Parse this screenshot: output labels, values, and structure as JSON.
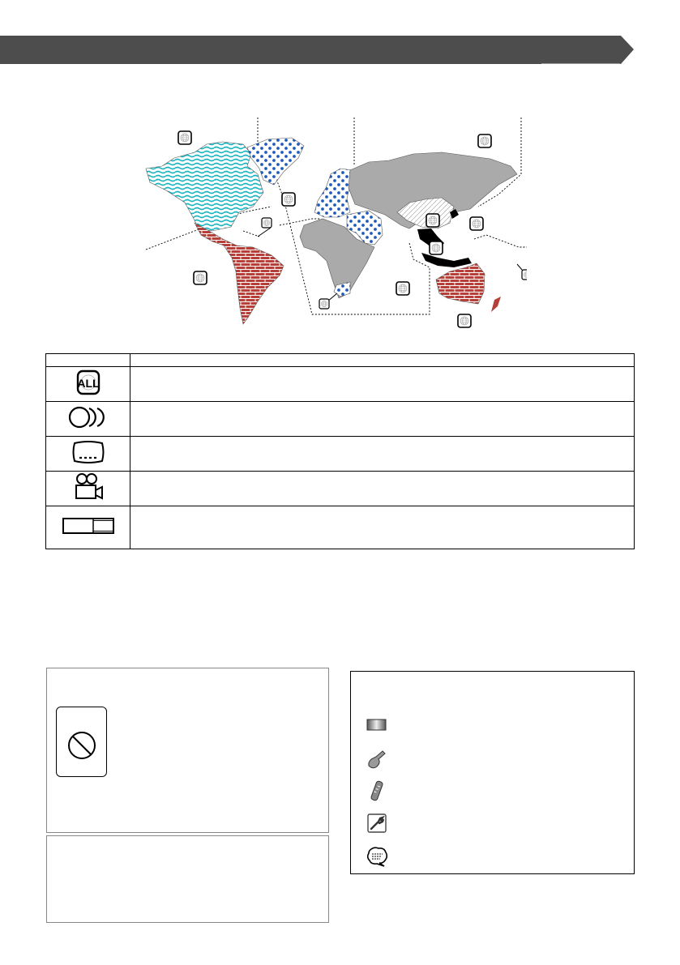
{
  "header": {
    "shape": "arrow-bar",
    "color": "#4d4d4d"
  },
  "map": {
    "colors": {
      "cyan_waves": "#19b5c0",
      "blue_dots": "#1f5bbd",
      "brick": "#b5403a",
      "gray": "#aaaaaa",
      "black": "#000000"
    },
    "region_icons": "globe-icon"
  },
  "legend_table": {
    "rows": [
      {
        "icon": "region-all-icon",
        "icon_text": "ALL"
      },
      {
        "icon": "discs-icon"
      },
      {
        "icon": "subtitle-screen-icon"
      },
      {
        "icon": "movie-camera-icon"
      },
      {
        "icon": "aspect-ratio-icon"
      }
    ]
  },
  "boxes": {
    "left": {
      "icon": "prohibited-icon"
    },
    "right": {
      "icons": [
        "screen-icon",
        "touch-hand-icon",
        "remote-control-icon",
        "wrench-icon",
        "speech-bubble-icon"
      ]
    }
  }
}
